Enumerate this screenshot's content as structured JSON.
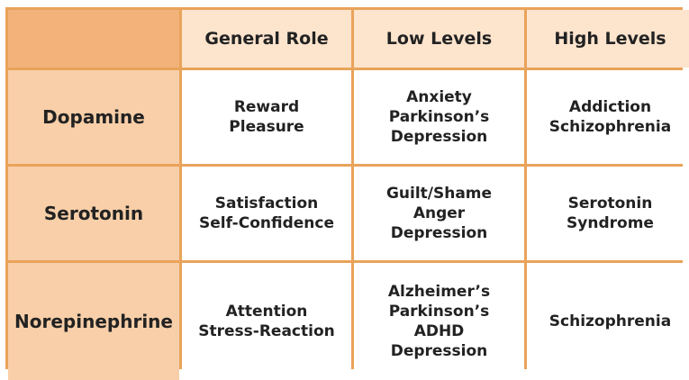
{
  "table": {
    "columns": [
      "",
      "General Role",
      "Low Levels",
      "High Levels"
    ],
    "rows": [
      {
        "label": "Dopamine",
        "general_role": [
          "Reward",
          "Pleasure"
        ],
        "low_levels": [
          "Anxiety",
          "Parkinson’s",
          "Depression"
        ],
        "high_levels": [
          "Addiction",
          "Schizophrenia"
        ]
      },
      {
        "label": "Serotonin",
        "general_role": [
          "Satisfaction",
          "Self-Confidence"
        ],
        "low_levels": [
          "Guilt/Shame",
          "Anger",
          "Depression"
        ],
        "high_levels": [
          "Serotonin",
          "Syndrome"
        ]
      },
      {
        "label": "Norepinephrine",
        "general_role": [
          "Attention",
          "Stress-Reaction"
        ],
        "low_levels": [
          "Alzheimer’s",
          "Parkinson’s",
          "ADHD",
          "Depression"
        ],
        "high_levels": [
          "Schizophrenia"
        ]
      }
    ]
  },
  "colors": {
    "border": "#e9a35a",
    "corner": "#f2b27a",
    "header_bg": "#fde4cd",
    "row_header_bg": "#f8cfa8",
    "cell_bg": "#ffffff"
  }
}
